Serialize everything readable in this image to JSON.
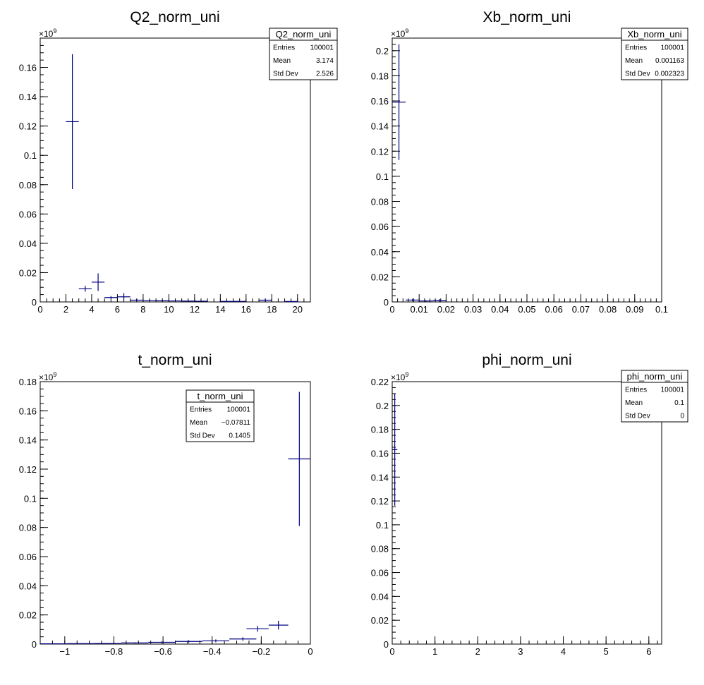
{
  "chart_data": [
    {
      "type": "histogram",
      "title": "Q2_norm_uni",
      "xlim": [
        0,
        21
      ],
      "ylim": [
        0,
        0.18
      ],
      "y_exponent": "×10",
      "y_exponent_power": "9",
      "xticks": [
        {
          "value": 0,
          "label": "0"
        },
        {
          "value": 2,
          "label": "2"
        },
        {
          "value": 4,
          "label": "4"
        },
        {
          "value": 6,
          "label": "6"
        },
        {
          "value": 8,
          "label": "8"
        },
        {
          "value": 10,
          "label": "10"
        },
        {
          "value": 12,
          "label": "12"
        },
        {
          "value": 14,
          "label": "14"
        },
        {
          "value": 16,
          "label": "16"
        },
        {
          "value": 18,
          "label": "18"
        },
        {
          "value": 20,
          "label": "20"
        }
      ],
      "yticks": [
        {
          "value": 0,
          "label": "0"
        },
        {
          "value": 0.02,
          "label": "0.02"
        },
        {
          "value": 0.04,
          "label": "0.04"
        },
        {
          "value": 0.06,
          "label": "0.06"
        },
        {
          "value": 0.08,
          "label": "0.08"
        },
        {
          "value": 0.1,
          "label": "0.1"
        },
        {
          "value": 0.12,
          "label": "0.12"
        },
        {
          "value": 0.14,
          "label": "0.14"
        },
        {
          "value": 0.16,
          "label": "0.16"
        }
      ],
      "x_minor_step": 0.5,
      "y_minor_step": 0.005,
      "points": [
        {
          "xlo": 2,
          "xhi": 3,
          "y": 0.123,
          "err": 0.046
        },
        {
          "xlo": 3,
          "xhi": 4,
          "y": 0.009,
          "err": 0.002
        },
        {
          "xlo": 4,
          "xhi": 5,
          "y": 0.0135,
          "err": 0.006
        },
        {
          "xlo": 5,
          "xhi": 6,
          "y": 0.003,
          "err": 0.001
        },
        {
          "xlo": 6,
          "xhi": 7,
          "y": 0.0035,
          "err": 0.0025
        },
        {
          "xlo": 7,
          "xhi": 8,
          "y": 0.0012,
          "err": 0.0008
        },
        {
          "xlo": 8,
          "xhi": 9,
          "y": 0.001,
          "err": 0.0006
        },
        {
          "xlo": 9,
          "xhi": 10,
          "y": 0.0008,
          "err": 0.0005
        },
        {
          "xlo": 10,
          "xhi": 11,
          "y": 0.0007,
          "err": 0.0004
        },
        {
          "xlo": 11,
          "xhi": 12,
          "y": 0.0006,
          "err": 0.0003
        },
        {
          "xlo": 12,
          "xhi": 13,
          "y": 0.0005,
          "err": 0.0003
        },
        {
          "xlo": 14,
          "xhi": 15,
          "y": 0.0004,
          "err": 0.0002
        },
        {
          "xlo": 15,
          "xhi": 16,
          "y": 0.0004,
          "err": 0.0002
        },
        {
          "xlo": 17,
          "xhi": 18,
          "y": 0.0012,
          "err": 0.001
        },
        {
          "xlo": 19,
          "xhi": 20,
          "y": 0.0003,
          "err": 0.0002
        }
      ],
      "stats": {
        "name": "Q2_norm_uni",
        "rows": [
          {
            "label": "Entries",
            "value": "100001"
          },
          {
            "label": "Mean",
            "value": "3.174"
          },
          {
            "label": "Std Dev",
            "value": "2.526"
          }
        ]
      },
      "color": "#000080"
    },
    {
      "type": "histogram",
      "title": "Xb_norm_uni",
      "xlim": [
        0,
        0.1
      ],
      "ylim": [
        0,
        0.21
      ],
      "y_exponent": "×10",
      "y_exponent_power": "9",
      "xticks": [
        {
          "value": 0,
          "label": "0"
        },
        {
          "value": 0.01,
          "label": "0.01"
        },
        {
          "value": 0.02,
          "label": "0.02"
        },
        {
          "value": 0.03,
          "label": "0.03"
        },
        {
          "value": 0.04,
          "label": "0.04"
        },
        {
          "value": 0.05,
          "label": "0.05"
        },
        {
          "value": 0.06,
          "label": "0.06"
        },
        {
          "value": 0.07,
          "label": "0.07"
        },
        {
          "value": 0.08,
          "label": "0.08"
        },
        {
          "value": 0.09,
          "label": "0.09"
        },
        {
          "value": 0.1,
          "label": "0.1"
        }
      ],
      "yticks": [
        {
          "value": 0,
          "label": "0"
        },
        {
          "value": 0.02,
          "label": "0.02"
        },
        {
          "value": 0.04,
          "label": "0.04"
        },
        {
          "value": 0.06,
          "label": "0.06"
        },
        {
          "value": 0.08,
          "label": "0.08"
        },
        {
          "value": 0.1,
          "label": "0.1"
        },
        {
          "value": 0.12,
          "label": "0.12"
        },
        {
          "value": 0.14,
          "label": "0.14"
        },
        {
          "value": 0.16,
          "label": "0.16"
        },
        {
          "value": 0.18,
          "label": "0.18"
        },
        {
          "value": 0.2,
          "label": "0.2"
        }
      ],
      "x_minor_step": 0.002,
      "y_minor_step": 0.005,
      "points": [
        {
          "xlo": 0,
          "xhi": 0.005,
          "y": 0.159,
          "err": 0.046
        },
        {
          "xlo": 0.005,
          "xhi": 0.01,
          "y": 0.0015,
          "err": 0.001
        },
        {
          "xlo": 0.01,
          "xhi": 0.015,
          "y": 0.0008,
          "err": 0.0005
        },
        {
          "xlo": 0.015,
          "xhi": 0.02,
          "y": 0.0012,
          "err": 0.001
        }
      ],
      "stats": {
        "name": "Xb_norm_uni",
        "rows": [
          {
            "label": "Entries",
            "value": "100001"
          },
          {
            "label": "Mean",
            "value": "0.001163"
          },
          {
            "label": "Std Dev",
            "value": "0.002323"
          }
        ]
      },
      "color": "#000080"
    },
    {
      "type": "histogram",
      "title": "t_norm_uni",
      "xlim": [
        -1.1,
        0
      ],
      "ylim": [
        0,
        0.18
      ],
      "y_exponent": "×10",
      "y_exponent_power": "9",
      "xticks": [
        {
          "value": -1,
          "label": "−1"
        },
        {
          "value": -0.8,
          "label": "−0.8"
        },
        {
          "value": -0.6,
          "label": "−0.6"
        },
        {
          "value": -0.4,
          "label": "−0.4"
        },
        {
          "value": -0.2,
          "label": "−0.2"
        },
        {
          "value": 0,
          "label": "0"
        }
      ],
      "yticks": [
        {
          "value": 0,
          "label": "0"
        },
        {
          "value": 0.02,
          "label": "0.02"
        },
        {
          "value": 0.04,
          "label": "0.04"
        },
        {
          "value": 0.06,
          "label": "0.06"
        },
        {
          "value": 0.08,
          "label": "0.08"
        },
        {
          "value": 0.1,
          "label": "0.1"
        },
        {
          "value": 0.12,
          "label": "0.12"
        },
        {
          "value": 0.14,
          "label": "0.14"
        },
        {
          "value": 0.16,
          "label": "0.16"
        },
        {
          "value": 0.18,
          "label": "0.18"
        }
      ],
      "x_minor_step": 0.05,
      "y_minor_step": 0.005,
      "points": [
        {
          "xlo": -1.1,
          "xhi": -0.99,
          "y": 0.0002,
          "err": 0.0001
        },
        {
          "xlo": -0.99,
          "xhi": -0.88,
          "y": 0.0003,
          "err": 0.0001
        },
        {
          "xlo": -0.88,
          "xhi": -0.77,
          "y": 0.0004,
          "err": 0.0002
        },
        {
          "xlo": -0.77,
          "xhi": -0.66,
          "y": 0.0008,
          "err": 0.0004
        },
        {
          "xlo": -0.66,
          "xhi": -0.55,
          "y": 0.0012,
          "err": 0.0006
        },
        {
          "xlo": -0.55,
          "xhi": -0.44,
          "y": 0.0018,
          "err": 0.0008
        },
        {
          "xlo": -0.44,
          "xhi": -0.33,
          "y": 0.0022,
          "err": 0.001
        },
        {
          "xlo": -0.33,
          "xhi": -0.22,
          "y": 0.0035,
          "err": 0.0012
        },
        {
          "xlo": -0.26,
          "xhi": -0.17,
          "y": 0.0105,
          "err": 0.002
        },
        {
          "xlo": -0.17,
          "xhi": -0.09,
          "y": 0.013,
          "err": 0.003
        },
        {
          "xlo": -0.09,
          "xhi": 0,
          "y": 0.127,
          "err": 0.046
        }
      ],
      "stats": {
        "name": "t_norm_uni",
        "rows": [
          {
            "label": "Entries",
            "value": "100001"
          },
          {
            "label": "Mean",
            "value": "−0.07811"
          },
          {
            "label": "Std Dev",
            "value": "0.1405"
          }
        ]
      },
      "color": "#000080"
    },
    {
      "type": "histogram",
      "title": "phi_norm_uni",
      "xlim": [
        0,
        6.3
      ],
      "ylim": [
        0,
        0.22
      ],
      "y_exponent": "×10",
      "y_exponent_power": "9",
      "xticks": [
        {
          "value": 0,
          "label": "0"
        },
        {
          "value": 1,
          "label": "1"
        },
        {
          "value": 2,
          "label": "2"
        },
        {
          "value": 3,
          "label": "3"
        },
        {
          "value": 4,
          "label": "4"
        },
        {
          "value": 5,
          "label": "5"
        },
        {
          "value": 6,
          "label": "6"
        }
      ],
      "yticks": [
        {
          "value": 0,
          "label": "0"
        },
        {
          "value": 0.02,
          "label": "0.02"
        },
        {
          "value": 0.04,
          "label": "0.04"
        },
        {
          "value": 0.06,
          "label": "0.06"
        },
        {
          "value": 0.08,
          "label": "0.08"
        },
        {
          "value": 0.1,
          "label": "0.1"
        },
        {
          "value": 0.12,
          "label": "0.12"
        },
        {
          "value": 0.14,
          "label": "0.14"
        },
        {
          "value": 0.16,
          "label": "0.16"
        },
        {
          "value": 0.18,
          "label": "0.18"
        },
        {
          "value": 0.2,
          "label": "0.2"
        },
        {
          "value": 0.22,
          "label": "0.22"
        }
      ],
      "x_minor_step": 0.2,
      "y_minor_step": 0.005,
      "points": [
        {
          "xlo": 0,
          "xhi": 0.12,
          "y": 0.163,
          "err": 0.047
        }
      ],
      "stats": {
        "name": "phi_norm_uni",
        "rows": [
          {
            "label": "Entries",
            "value": "100001"
          },
          {
            "label": "Mean",
            "value": "0.1"
          },
          {
            "label": "Std Dev",
            "value": "0"
          }
        ]
      },
      "color": "#000080"
    }
  ]
}
